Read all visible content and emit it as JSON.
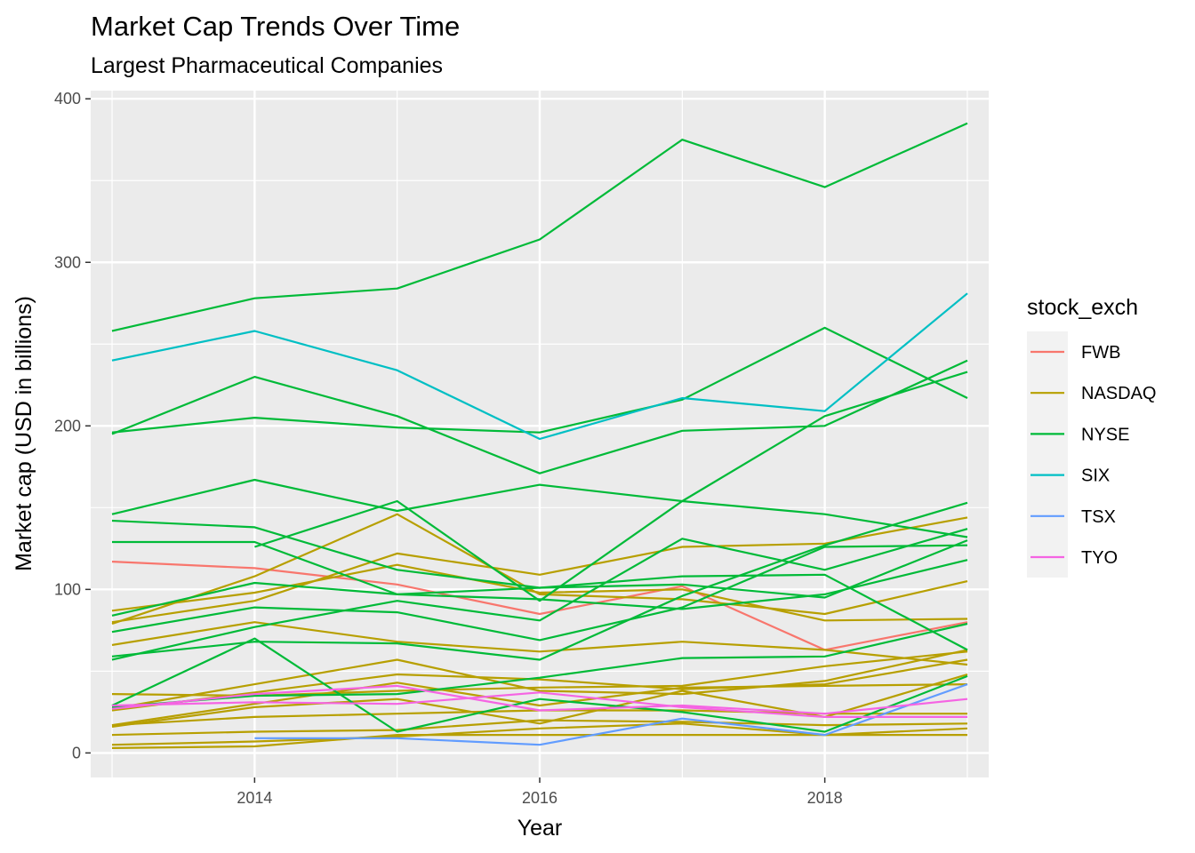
{
  "chart_data": {
    "type": "line",
    "title": "Market Cap Trends Over Time",
    "subtitle": "Largest Pharmaceutical Companies",
    "xlabel": "Year",
    "ylabel": "Market cap (USD in billions)",
    "xlim": [
      2012.85,
      2019.15
    ],
    "ylim": [
      -15,
      405
    ],
    "x_ticks": [
      2014,
      2016,
      2018
    ],
    "y_ticks": [
      0,
      100,
      200,
      300,
      400
    ],
    "grid": true,
    "legend_position": "right",
    "legend_title": "stock_exch",
    "colors": {
      "FWB": "#F8766D",
      "NASDAQ": "#B79F00",
      "NYSE": "#00BA38",
      "SIX": "#00BFC4",
      "TSX": "#619CFF",
      "TYO": "#F564E3"
    },
    "legend": [
      "FWB",
      "NASDAQ",
      "NYSE",
      "SIX",
      "TSX",
      "TYO"
    ],
    "series": [
      {
        "group": "FWB",
        "x": [
          2013,
          2014,
          2015,
          2016,
          2017,
          2018,
          2019
        ],
        "y": [
          117,
          113,
          103,
          85,
          102,
          63,
          80
        ]
      },
      {
        "group": "NASDAQ",
        "x": [
          2013,
          2014,
          2015,
          2016,
          2017,
          2018,
          2019
        ],
        "y": [
          79,
          108,
          146,
          97,
          94,
          85,
          105
        ]
      },
      {
        "group": "NASDAQ",
        "x": [
          2013,
          2014,
          2015,
          2016,
          2017,
          2018,
          2019
        ],
        "y": [
          87,
          98,
          115,
          98,
          100,
          81,
          82
        ]
      },
      {
        "group": "NASDAQ",
        "x": [
          2013,
          2014,
          2015,
          2016,
          2017,
          2018,
          2019
        ],
        "y": [
          80,
          93,
          122,
          109,
          126,
          128,
          144
        ]
      },
      {
        "group": "NASDAQ",
        "x": [
          2013,
          2014,
          2015,
          2016,
          2017,
          2018,
          2019
        ],
        "y": [
          66,
          80,
          68,
          62,
          68,
          63,
          54
        ]
      },
      {
        "group": "NASDAQ",
        "x": [
          2013,
          2014,
          2015,
          2016,
          2017,
          2018,
          2019
        ],
        "y": [
          36,
          35,
          38,
          40,
          41,
          53,
          62
        ]
      },
      {
        "group": "NASDAQ",
        "x": [
          2013,
          2014,
          2015,
          2016,
          2017,
          2018,
          2019
        ],
        "y": [
          27,
          42,
          57,
          38,
          36,
          44,
          63
        ]
      },
      {
        "group": "NASDAQ",
        "x": [
          2013,
          2014,
          2015,
          2016,
          2017,
          2018,
          2019
        ],
        "y": [
          26,
          37,
          48,
          45,
          39,
          42,
          57
        ]
      },
      {
        "group": "NASDAQ",
        "x": [
          2013,
          2014,
          2015,
          2016,
          2017,
          2018,
          2019
        ],
        "y": [
          17,
          30,
          43,
          29,
          40,
          41,
          42
        ]
      },
      {
        "group": "NASDAQ",
        "x": [
          2013,
          2014,
          2015,
          2016,
          2017,
          2018,
          2019
        ],
        "y": [
          16,
          28,
          33,
          18,
          38,
          22,
          48
        ]
      },
      {
        "group": "NASDAQ",
        "x": [
          2013,
          2014,
          2015,
          2016,
          2017,
          2018,
          2019
        ],
        "y": [
          17,
          22,
          24,
          26,
          26,
          24,
          24
        ]
      },
      {
        "group": "NASDAQ",
        "x": [
          2013,
          2014,
          2015,
          2016,
          2017,
          2018,
          2019
        ],
        "y": [
          11,
          13,
          14,
          20,
          19,
          17,
          18
        ]
      },
      {
        "group": "NASDAQ",
        "x": [
          2013,
          2014,
          2015,
          2016,
          2017,
          2018,
          2019
        ],
        "y": [
          5,
          7,
          10,
          15,
          18,
          11,
          15
        ]
      },
      {
        "group": "NASDAQ",
        "x": [
          2013,
          2014,
          2015,
          2016,
          2017,
          2018,
          2019
        ],
        "y": [
          3,
          4,
          11,
          11,
          11,
          11,
          11
        ]
      },
      {
        "group": "NYSE",
        "x": [
          2013,
          2014,
          2015,
          2016,
          2017,
          2018,
          2019
        ],
        "y": [
          258,
          278,
          284,
          314,
          375,
          346,
          385
        ]
      },
      {
        "group": "NYSE",
        "x": [
          2013,
          2014,
          2015,
          2016,
          2017,
          2018,
          2019
        ],
        "y": [
          195,
          230,
          206,
          171,
          197,
          200,
          240
        ]
      },
      {
        "group": "NYSE",
        "x": [
          2013,
          2014,
          2015,
          2016,
          2017,
          2018,
          2019
        ],
        "y": [
          196,
          205,
          199,
          196,
          216,
          260,
          217
        ]
      },
      {
        "group": "NYSE",
        "x": [
          2013,
          2014,
          2015,
          2016,
          2017,
          2018,
          2019
        ],
        "y": [
          146,
          167,
          148,
          164,
          154,
          146,
          132
        ]
      },
      {
        "group": "NYSE",
        "x": [
          2013,
          2014,
          2015,
          2016,
          2017,
          2018,
          2019
        ],
        "y": [
          142,
          138,
          112,
          101,
          103,
          95,
          130
        ]
      },
      {
        "group": "NYSE",
        "x": [
          2013,
          2014,
          2015,
          2016,
          2017,
          2018,
          2019
        ],
        "y": [
          129,
          129,
          97,
          101,
          108,
          109,
          63
        ]
      },
      {
        "group": "NYSE",
        "x": [
          2013,
          2014,
          2015,
          2016,
          2017,
          2018,
          2019
        ],
        "y": [
          84,
          104,
          97,
          94,
          88,
          97,
          118
        ]
      },
      {
        "group": "NYSE",
        "x": [
          2013,
          2014,
          2015,
          2016,
          2017,
          2018,
          2019
        ],
        "y": [
          74,
          89,
          86,
          69,
          89,
          126,
          127
        ]
      },
      {
        "group": "NYSE",
        "x": [
          2013,
          2014,
          2015,
          2016,
          2017,
          2018,
          2019
        ],
        "y": [
          57,
          77,
          93,
          81,
          131,
          112,
          137
        ]
      },
      {
        "group": "NYSE",
        "x": [
          2013,
          2014,
          2015,
          2016,
          2017,
          2018,
          2019
        ],
        "y": [
          59,
          68,
          67,
          57,
          96,
          127,
          153
        ]
      },
      {
        "group": "NYSE",
        "x": [
          2014,
          2015,
          2016,
          2017,
          2018,
          2019
        ],
        "y": [
          126,
          154,
          93,
          154,
          206,
          233
        ]
      },
      {
        "group": "NYSE",
        "x": [
          2013,
          2014,
          2015,
          2016,
          2017,
          2018,
          2019
        ],
        "y": [
          29,
          70,
          13,
          33,
          25,
          13,
          47
        ]
      },
      {
        "group": "NYSE",
        "x": [
          2013,
          2014,
          2015,
          2016,
          2017,
          2018,
          2019
        ],
        "y": [
          28,
          35,
          36,
          46,
          58,
          59,
          79
        ]
      },
      {
        "group": "SIX",
        "x": [
          2013,
          2014,
          2015,
          2016,
          2017,
          2018,
          2019
        ],
        "y": [
          240,
          258,
          234,
          192,
          217,
          209,
          281
        ]
      },
      {
        "group": "TSX",
        "x": [
          2014,
          2015,
          2016,
          2017,
          2018,
          2019
        ],
        "y": [
          9,
          9,
          5,
          21,
          11,
          42
        ]
      },
      {
        "group": "TYO",
        "x": [
          2013,
          2014,
          2015,
          2016,
          2017,
          2018,
          2019
        ],
        "y": [
          27,
          36,
          41,
          26,
          29,
          24,
          33
        ]
      },
      {
        "group": "TYO",
        "x": [
          2013,
          2014,
          2015,
          2016,
          2017,
          2018,
          2019
        ],
        "y": [
          29,
          31,
          30,
          37,
          28,
          22,
          22
        ]
      }
    ]
  }
}
